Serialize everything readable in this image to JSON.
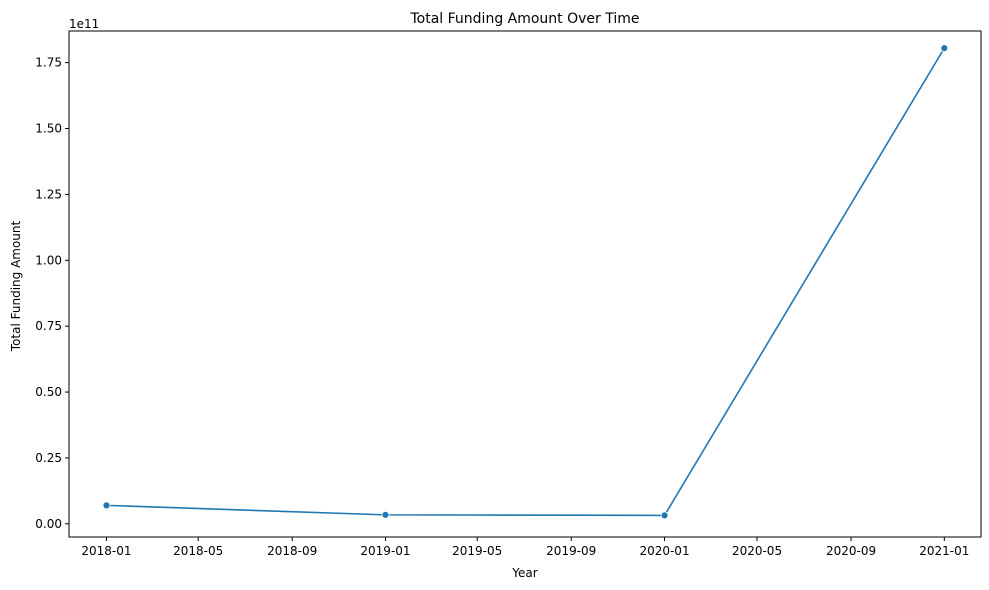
{
  "chart_data": {
    "type": "line",
    "title": "Total Funding Amount Over Time",
    "xlabel": "Year",
    "ylabel": "Total Funding Amount",
    "y_offset_label": "1e11",
    "x_tick_labels": [
      "2018-01",
      "2018-05",
      "2018-09",
      "2019-01",
      "2019-05",
      "2019-09",
      "2020-01",
      "2020-05",
      "2020-09",
      "2021-01"
    ],
    "y_tick_labels": [
      "0.00",
      "0.25",
      "0.50",
      "0.75",
      "1.00",
      "1.25",
      "1.50",
      "1.75"
    ],
    "x_axis_type": "date",
    "xlim": [
      "2017-11-13",
      "2021-02-18"
    ],
    "ylim": [
      -5000000000,
      187000000000
    ],
    "grid": false,
    "series": [
      {
        "color": "#1f77b4",
        "marker": "circle",
        "x": [
          "2018-01-01",
          "2019-01-01",
          "2020-01-01",
          "2021-01-01"
        ],
        "y": [
          7000000000,
          3400000000,
          3200000000,
          180500000000
        ]
      }
    ]
  }
}
